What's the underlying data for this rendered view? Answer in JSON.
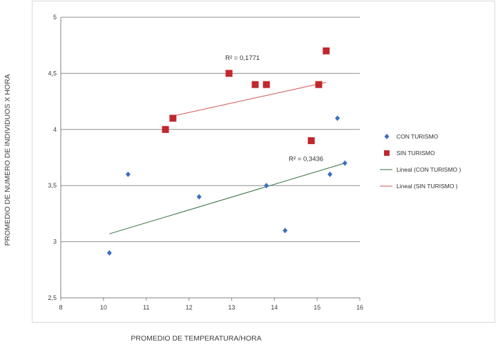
{
  "chart_data": {
    "type": "scatter",
    "title": "",
    "xlabel": "PROMEDIO DE TEMPERATURA/HORA",
    "ylabel": "PROMEDIO DE NUMERO DE INDIVIDUOS X HORA",
    "xlim": [
      8,
      16
    ],
    "ylim": [
      2.5,
      5
    ],
    "x_ticks": [
      "8",
      "10",
      "11",
      "12",
      "13",
      "14",
      "15",
      "16"
    ],
    "y_ticks": [
      "5",
      "4,5",
      "4",
      "3,5",
      "3",
      "2,5"
    ],
    "grid": "horizontal",
    "legend_position": "right",
    "series": [
      {
        "name": "CON TURISMO",
        "marker": "diamond",
        "color": "#3a6fc4",
        "points": [
          [
            9.3,
            2.9
          ],
          [
            9.8,
            3.6
          ],
          [
            11.7,
            3.4
          ],
          [
            13.5,
            3.5
          ],
          [
            14.0,
            3.1
          ],
          [
            15.2,
            3.6
          ],
          [
            15.4,
            4.1
          ],
          [
            15.6,
            3.7
          ]
        ],
        "trendline": {
          "name": "Lineal (CON TURISMO )",
          "from": [
            9.3,
            3.07
          ],
          "to": [
            15.6,
            3.7
          ],
          "color": "#2e6e3e",
          "r2_label": "R² = 0,3436"
        }
      },
      {
        "name": "SIN TURISMO",
        "marker": "square",
        "color": "#c0282d",
        "points": [
          [
            10.8,
            4.0
          ],
          [
            11.0,
            4.1
          ],
          [
            12.5,
            4.5
          ],
          [
            13.2,
            4.4
          ],
          [
            13.5,
            4.4
          ],
          [
            14.7,
            3.9
          ],
          [
            14.9,
            4.4
          ],
          [
            15.1,
            4.7
          ]
        ],
        "trendline": {
          "name": "Lineal (SIN TURISMO )",
          "from": [
            11.0,
            4.12
          ],
          "to": [
            15.1,
            4.42
          ],
          "color": "#d0504d",
          "r2_label": "R² = 0,1771"
        }
      }
    ]
  }
}
